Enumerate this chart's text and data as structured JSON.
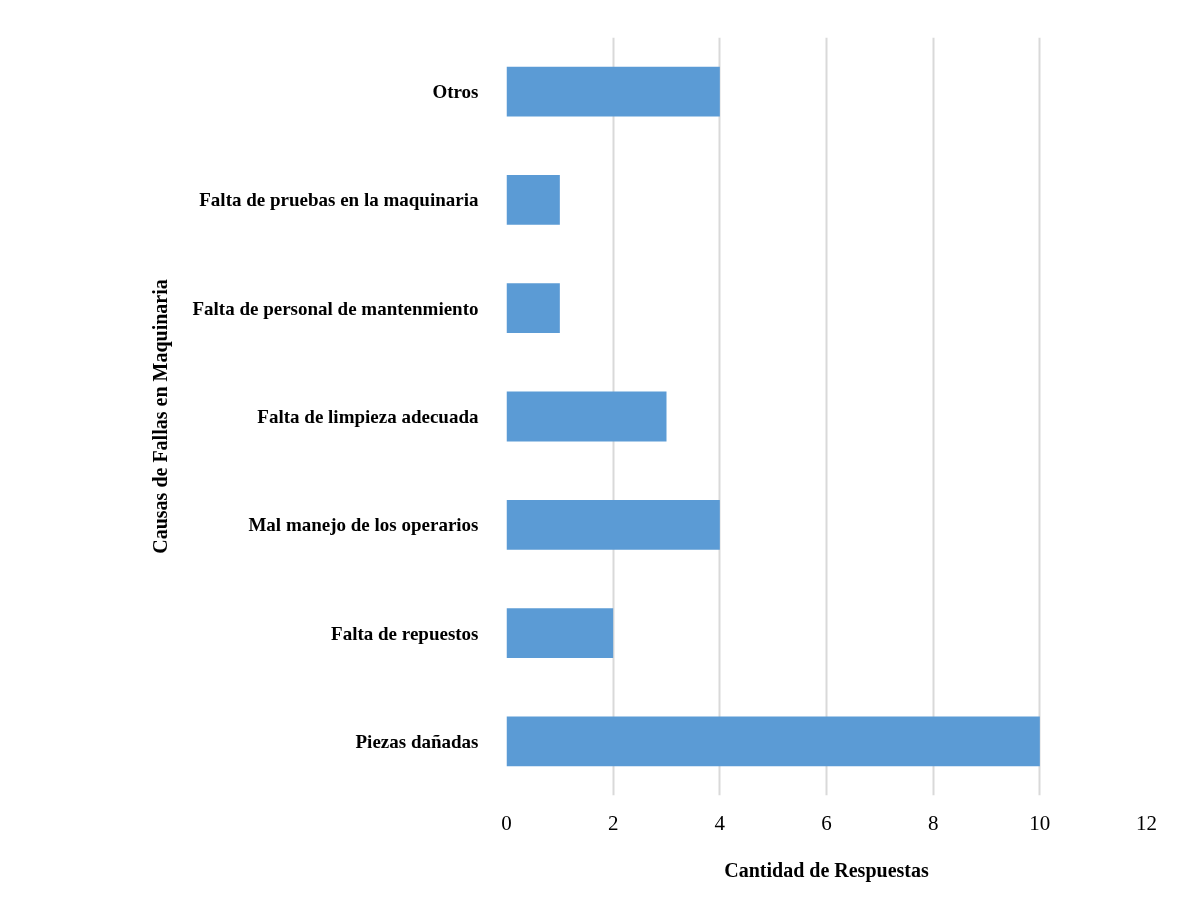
{
  "chart_data": {
    "type": "bar",
    "orientation": "horizontal",
    "xlabel": "Cantidad de Respuestas",
    "ylabel": "Causas de Fallas en Maquinaria",
    "categories": [
      "Otros",
      "Falta de pruebas en la maquinaria",
      "Falta de personal de mantenmiento",
      "Falta de limpieza adecuada",
      "Mal manejo de los operarios",
      "Falta de repuestos",
      "Piezas dañadas"
    ],
    "values": [
      4,
      1,
      1,
      3,
      4,
      2,
      10
    ],
    "color": "#5b9bd5",
    "xlim": [
      0,
      12
    ],
    "xticks": [
      0,
      2,
      4,
      6,
      8,
      10,
      12
    ],
    "grid": "x"
  }
}
